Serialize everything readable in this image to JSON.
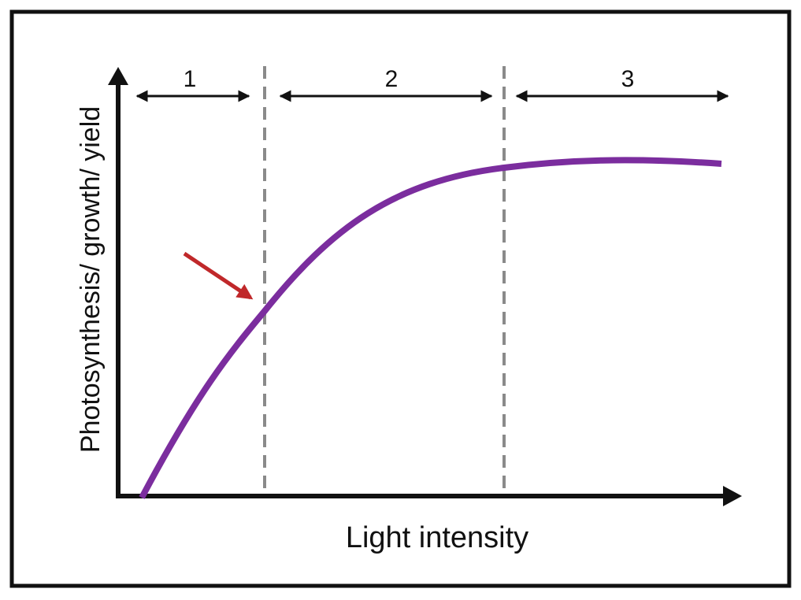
{
  "diagram": {
    "x_axis_label": "Light intensity",
    "y_axis_label": "Photosynthesis/ growth/ yield",
    "regions": [
      "1",
      "2",
      "3"
    ]
  }
}
